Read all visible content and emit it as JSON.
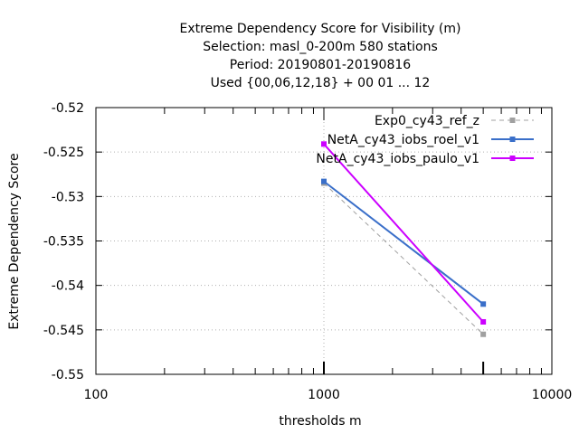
{
  "chart_data": {
    "type": "line",
    "title_lines": [
      "Extreme Dependency Score  for Visibility (m)",
      "Selection: masl_0-200m    580 stations",
      "Period: 20190801-20190816",
      "Used {00,06,12,18} + 00 01 ... 12"
    ],
    "xlabel": "thresholds m",
    "ylabel": "Extreme Dependency Score",
    "x_scale": "log",
    "xlim": [
      100,
      10000
    ],
    "ylim": [
      -0.55,
      -0.52
    ],
    "x_ticks": [
      100,
      1000,
      10000
    ],
    "x_tick_labels": [
      "100",
      "1000",
      "10000"
    ],
    "y_ticks": [
      -0.52,
      -0.525,
      -0.53,
      -0.535,
      -0.54,
      -0.545,
      -0.55
    ],
    "y_tick_labels": [
      "-0.52",
      "-0.525",
      "-0.53",
      "-0.535",
      "-0.54",
      "-0.545",
      "-0.55"
    ],
    "grid": true,
    "legend_position": "top-right",
    "series": [
      {
        "name": "Exp0_cy43_ref_z",
        "color": "#a0a0a0",
        "dashed": true,
        "x": [
          1000,
          5000
        ],
        "y": [
          -0.5285,
          -0.5455
        ]
      },
      {
        "name": "NetA_cy43_iobs_roel_v1",
        "color": "#3a6fc9",
        "dashed": false,
        "x": [
          1000,
          5000
        ],
        "y": [
          -0.5283,
          -0.5421
        ]
      },
      {
        "name": "NetA_cy43_iobs_paulo_v1",
        "color": "#cc00ff",
        "dashed": false,
        "x": [
          1000,
          5000
        ],
        "y": [
          -0.5241,
          -0.5441
        ]
      }
    ]
  }
}
